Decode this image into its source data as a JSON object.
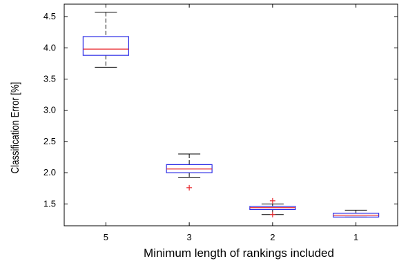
{
  "chart_data": {
    "type": "box",
    "xlabel": "Minimum length of rankings included",
    "ylabel": "Classification Error [%]",
    "ylim": [
      1.15,
      4.7
    ],
    "yticks": [
      1.5,
      2.0,
      2.5,
      3.0,
      3.5,
      4.0,
      4.5
    ],
    "ytick_labels": [
      "1.5",
      "2.0",
      "2.5",
      "3.0",
      "3.5",
      "4.0",
      "4.5"
    ],
    "categories": [
      "5",
      "3",
      "2",
      "1"
    ],
    "boxes": [
      {
        "category": "5",
        "whisker_low": 3.69,
        "q1": 3.88,
        "median": 3.98,
        "q3": 4.18,
        "whisker_high": 4.57,
        "outliers": []
      },
      {
        "category": "3",
        "whisker_low": 1.92,
        "q1": 2.0,
        "median": 2.06,
        "q3": 2.13,
        "whisker_high": 2.3,
        "outliers": [
          1.76
        ]
      },
      {
        "category": "2",
        "whisker_low": 1.33,
        "q1": 1.41,
        "median": 1.44,
        "q3": 1.46,
        "whisker_high": 1.5,
        "outliers": [
          1.55,
          1.33
        ]
      },
      {
        "category": "1",
        "whisker_low": 1.29,
        "q1": 1.29,
        "median": 1.32,
        "q3": 1.35,
        "whisker_high": 1.4,
        "outliers": []
      }
    ],
    "colors": {
      "box": "#2a2ae6",
      "median": "#e8262c",
      "whisker": "#000000",
      "outlier": "#e8262c"
    },
    "grid": false
  }
}
